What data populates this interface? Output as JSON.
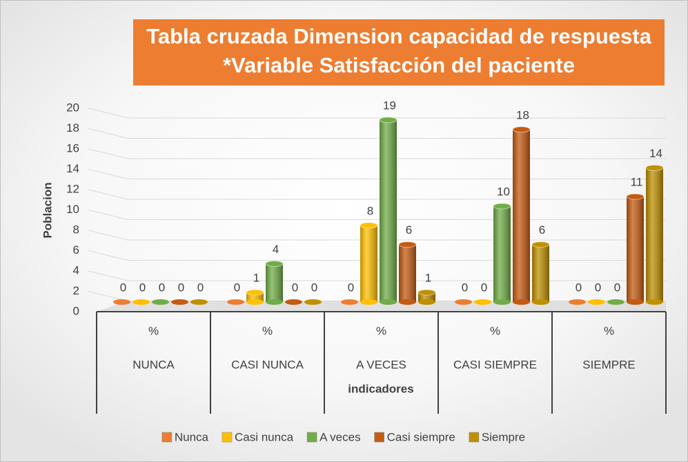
{
  "chart_data": {
    "type": "bar",
    "title": [
      "Tabla cruzada Dimension capacidad de respuesta",
      "*Variable Satisfacción del paciente"
    ],
    "ylabel": "Poblacion",
    "xlabel": "indicadores",
    "categories": [
      "%",
      "%",
      "%",
      "%",
      "%"
    ],
    "groups": [
      "NUNCA",
      "CASI NUNCA",
      "A VECES",
      "CASI SIEMPRE",
      "SIEMPRE"
    ],
    "series": [
      {
        "name": "Nunca",
        "color": "#ed7d31",
        "values": [
          0,
          0,
          0,
          0,
          0
        ]
      },
      {
        "name": "Casi nunca",
        "color": "#ffc000",
        "values": [
          0,
          1,
          8,
          0,
          0
        ]
      },
      {
        "name": "A veces",
        "color": "#70ad47",
        "values": [
          0,
          4,
          19,
          10,
          0
        ]
      },
      {
        "name": "Casi siempre",
        "color": "#c55a11",
        "values": [
          0,
          0,
          6,
          18,
          11
        ]
      },
      {
        "name": "Siempre",
        "color": "#bf9000",
        "values": [
          0,
          0,
          1,
          6,
          14
        ]
      }
    ],
    "ylim": [
      0,
      20
    ],
    "yticks": [
      0,
      2,
      4,
      6,
      8,
      10,
      12,
      14,
      16,
      18,
      20
    ],
    "grid": true,
    "legend": "bottom"
  }
}
